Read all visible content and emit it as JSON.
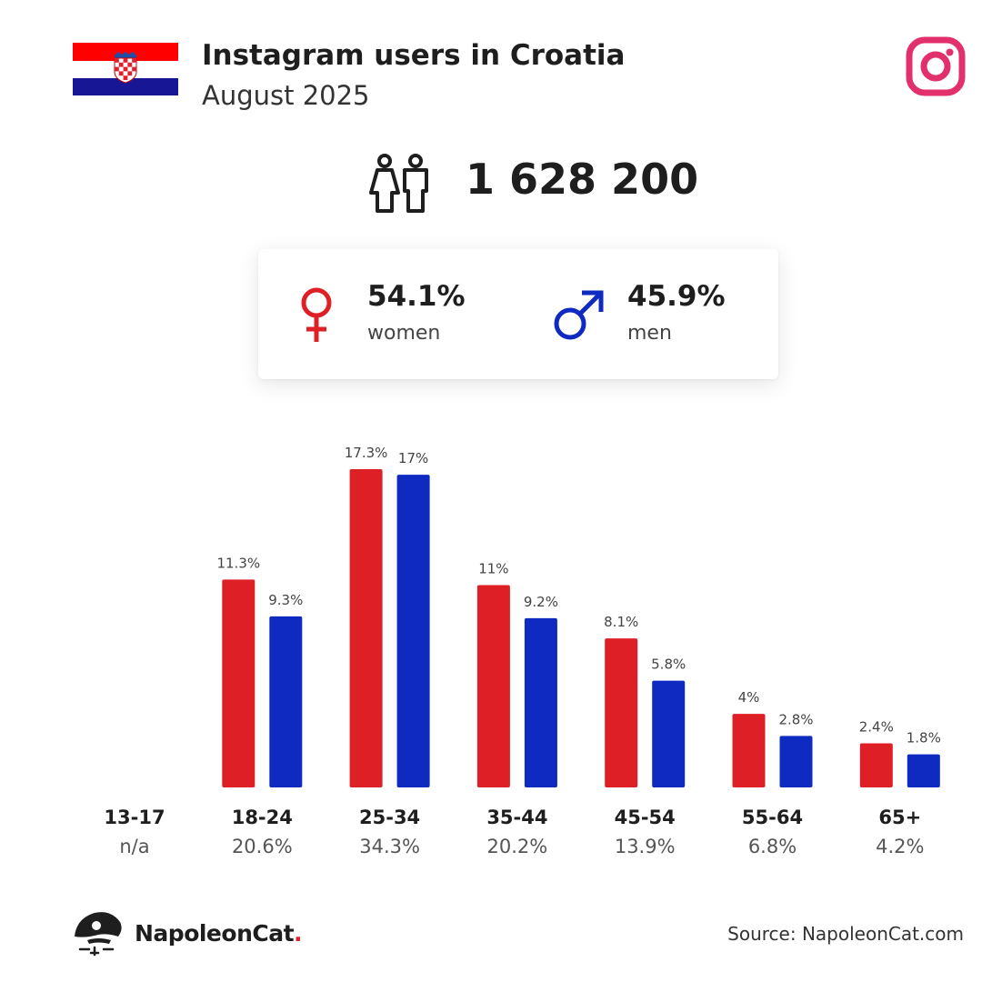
{
  "header": {
    "title": "Instagram users in Croatia",
    "subtitle": "August 2025"
  },
  "total_users": "1 628 200",
  "gender": {
    "women_pct": "54.1%",
    "women_label": "women",
    "men_pct": "45.9%",
    "men_label": "men"
  },
  "colors": {
    "women": "#df1f26",
    "men": "#0f2ac0",
    "instagram": "#e1306c",
    "text": "#1e1e1e"
  },
  "icons": {
    "flag": "croatia-flag-icon",
    "platform": "instagram-icon",
    "users": "people-icon",
    "female": "female-symbol-icon",
    "male": "male-symbol-icon",
    "brand": "napoleoncat-logo"
  },
  "chart_data": {
    "type": "bar",
    "categories": [
      "13-17",
      "18-24",
      "25-34",
      "35-44",
      "45-54",
      "55-64",
      "65+"
    ],
    "category_totals": [
      "n/a",
      "20.6%",
      "34.3%",
      "20.2%",
      "13.9%",
      "6.8%",
      "4.2%"
    ],
    "series": [
      {
        "name": "women",
        "values": [
          null,
          11.3,
          17.3,
          11,
          8.1,
          4,
          2.4
        ],
        "labels": [
          "",
          "11.3%",
          "17.3%",
          "11%",
          "8.1%",
          "4%",
          "2.4%"
        ]
      },
      {
        "name": "men",
        "values": [
          null,
          9.3,
          17,
          9.2,
          5.8,
          2.8,
          1.8
        ],
        "labels": [
          "",
          "9.3%",
          "17%",
          "9.2%",
          "5.8%",
          "2.8%",
          "1.8%"
        ]
      }
    ],
    "ylim": [
      0,
      17.3
    ],
    "grid": false
  },
  "footer": {
    "brand_name": "NapoleonCat",
    "brand_dot": ".",
    "source": "Source: NapoleonCat.com"
  }
}
